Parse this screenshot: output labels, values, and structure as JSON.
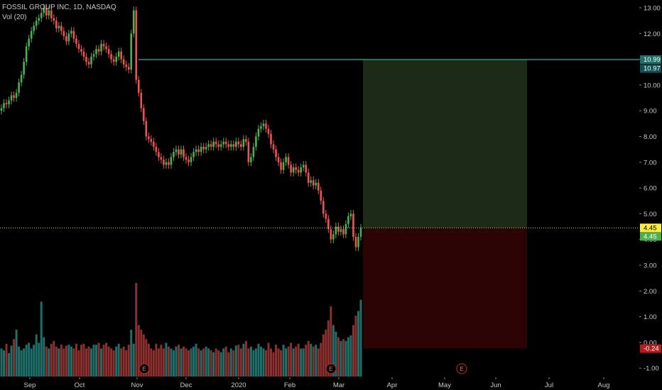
{
  "legend": {
    "symbol_line": "FOSSIL GROUP INC, 1D, NASDAQ",
    "volume_line": "Vol (20)"
  },
  "colors": {
    "background": "#000000",
    "up": "#26a69a",
    "up_candle": "#4caf50",
    "down": "#ef5350",
    "volume_up": "#1f6f6a",
    "volume_down": "#8c2f2f",
    "target_zone": "#1c2a16",
    "stop_zone": "#2b0304",
    "entry_line": "#c8d86a",
    "target_line": "#2a8f95"
  },
  "chart_data": {
    "type": "candlestick",
    "title": "FOSSIL GROUP INC, 1D, NASDAQ",
    "x_ticks": [
      "Sep",
      "Oct",
      "Nov",
      "Dec",
      "2020",
      "Feb",
      "Mar",
      "Apr",
      "May",
      "Jun",
      "Jul",
      "Aug"
    ],
    "y_ticks": [
      "13.00",
      "12.00",
      "11.00",
      "10.00",
      "9.00",
      "8.00",
      "7.00",
      "6.00",
      "5.00",
      "4.00",
      "3.00",
      "2.00",
      "1.00",
      "0.00",
      "-1.00"
    ],
    "ylim": [
      -1.2,
      13.2
    ],
    "series": [
      {
        "name": "FOSSIL GROUP INC",
        "close": [
          9.1,
          9.3,
          9.25,
          9.4,
          9.6,
          9.5,
          9.7,
          10.1,
          10.4,
          10.9,
          11.5,
          11.8,
          12.1,
          12.3,
          12.5,
          12.6,
          12.8,
          13.0,
          12.7,
          12.9,
          12.6,
          12.5,
          12.2,
          12.3,
          12.1,
          11.9,
          11.7,
          12.0,
          12.1,
          11.8,
          11.6,
          11.4,
          11.3,
          11.1,
          10.9,
          10.8,
          11.1,
          11.2,
          11.4,
          11.3,
          11.6,
          11.5,
          11.4,
          11.2,
          11.0,
          10.9,
          11.1,
          11.3,
          11.0,
          10.8,
          10.7,
          10.6,
          12.0,
          12.9,
          10.2,
          9.7,
          9.1,
          8.6,
          8.0,
          7.9,
          7.8,
          7.6,
          7.4,
          7.2,
          7.1,
          6.9,
          7.0,
          6.9,
          7.2,
          7.4,
          7.5,
          7.3,
          7.5,
          7.2,
          7.1,
          7.0,
          7.2,
          7.4,
          7.5,
          7.4,
          7.6,
          7.5,
          7.6,
          7.7,
          7.6,
          7.8,
          7.7,
          7.6,
          7.7,
          7.8,
          7.7,
          7.6,
          7.7,
          7.6,
          7.8,
          7.7,
          7.6,
          7.9,
          7.8,
          7.0,
          7.2,
          7.6,
          8.0,
          8.3,
          8.4,
          8.5,
          8.3,
          8.1,
          7.7,
          7.5,
          7.2,
          7.0,
          6.7,
          7.0,
          7.2,
          6.9,
          6.6,
          6.8,
          6.7,
          6.6,
          6.8,
          6.9,
          6.6,
          6.2,
          6.3,
          6.1,
          6.2,
          5.9,
          5.5,
          5.0,
          4.8,
          4.4,
          4.0,
          4.2,
          4.5,
          4.3,
          4.4,
          4.2,
          4.6,
          4.9,
          5.0,
          4.1,
          3.7,
          4.1,
          4.45
        ],
        "volume_relative": [
          0.3,
          0.28,
          0.35,
          0.25,
          0.33,
          0.4,
          0.5,
          0.32,
          0.28,
          0.3,
          0.34,
          0.36,
          0.3,
          0.34,
          0.45,
          0.36,
          0.8,
          0.42,
          0.32,
          0.3,
          0.35,
          0.38,
          0.32,
          0.3,
          0.34,
          0.3,
          0.33,
          0.34,
          0.32,
          0.3,
          0.35,
          0.28,
          0.34,
          0.35,
          0.3,
          0.32,
          0.3,
          0.34,
          0.34,
          0.36,
          0.3,
          0.34,
          0.36,
          0.32,
          0.3,
          0.28,
          0.32,
          0.35,
          0.3,
          0.32,
          0.28,
          0.34,
          0.5,
          0.35,
          1.0,
          0.55,
          0.5,
          0.45,
          0.4,
          0.35,
          0.3,
          0.28,
          0.35,
          0.3,
          0.34,
          0.3,
          0.36,
          0.32,
          0.3,
          0.28,
          0.32,
          0.34,
          0.3,
          0.32,
          0.3,
          0.28,
          0.3,
          0.32,
          0.35,
          0.3,
          0.28,
          0.3,
          0.32,
          0.3,
          0.28,
          0.26,
          0.3,
          0.28,
          0.26,
          0.3,
          0.32,
          0.26,
          0.3,
          0.28,
          0.33,
          0.34,
          0.3,
          0.35,
          0.38,
          0.3,
          0.32,
          0.28,
          0.3,
          0.35,
          0.32,
          0.3,
          0.28,
          0.36,
          0.3,
          0.26,
          0.34,
          0.3,
          0.28,
          0.34,
          0.3,
          0.32,
          0.36,
          0.3,
          0.32,
          0.35,
          0.3,
          0.3,
          0.34,
          0.38,
          0.35,
          0.32,
          0.34,
          0.3,
          0.36,
          0.45,
          0.5,
          0.6,
          0.75,
          0.55,
          0.48,
          0.42,
          0.38,
          0.4,
          0.38,
          0.42,
          0.44,
          0.55,
          0.65,
          0.7,
          0.82
        ]
      }
    ],
    "horizontal_lines": [
      {
        "label": "10.99",
        "value": 10.99,
        "role": "target"
      },
      {
        "label": "4.45",
        "value": 4.45,
        "role": "entry"
      }
    ],
    "price_labels": [
      {
        "text": "10.99",
        "value": 10.99,
        "role": "target"
      },
      {
        "text": "10.97",
        "value": 10.97,
        "role": "last-line"
      },
      {
        "text": "4.45",
        "value": 4.45,
        "role": "entry"
      },
      {
        "text": "4.45",
        "value": 4.45,
        "role": "close"
      },
      {
        "text": "-0.24",
        "value": -0.24,
        "role": "stop"
      }
    ],
    "position_tool": {
      "entry": 4.45,
      "target": 10.99,
      "stop": -0.24,
      "start_month": "Mar",
      "end_month": "Jun"
    },
    "earnings_markers": [
      {
        "text": "E",
        "month": "Nov"
      },
      {
        "text": "E",
        "month": "Mar"
      },
      {
        "text": "E",
        "month": "May"
      }
    ],
    "grid": false,
    "legend_position": "top-left"
  }
}
